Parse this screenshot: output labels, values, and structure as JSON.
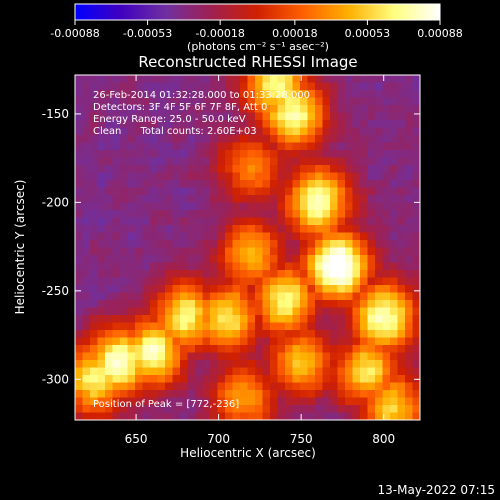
{
  "chart_data": {
    "type": "heatmap",
    "title": "Reconstructed RHESSI Image",
    "xlabel": "Heliocentric X (arcsec)",
    "ylabel": "Heliocentric Y (arcsec)",
    "xlim": [
      613,
      822
    ],
    "ylim": [
      -323,
      -128
    ],
    "x_ticks": [
      650,
      700,
      750,
      800
    ],
    "y_ticks": [
      -150,
      -200,
      -250,
      -300
    ],
    "colorbar": {
      "units": "(photons cm⁻² s⁻¹ asec⁻²)",
      "range": [
        -0.00088,
        0.00088
      ],
      "tick_values": [
        -0.00088,
        -0.00053,
        -0.00018,
        0.00018,
        0.00053,
        0.00088
      ],
      "tick_labels": [
        "-0.00088",
        "-0.00053",
        "-0.00018",
        "0.00018",
        "0.00053",
        "0.00088"
      ],
      "colors": [
        "#0000ff",
        "#4000c0",
        "#7030a0",
        "#a02050",
        "#d02000",
        "#ff6000",
        "#ffb000",
        "#ffff80",
        "#ffffff"
      ]
    },
    "annotations": [
      "26-Feb-2014 01:32:28.000 to 01:33:28.000",
      "Detectors: 3F 4F 5F 6F 7F 8F, Att 0",
      "Energy Range: 25.0 - 50.0 keV",
      "Clean      Total counts: 2.60E+03"
    ],
    "peak_label": "Position of Peak = [772,-236]",
    "peak": {
      "x": 772,
      "y": -236
    },
    "bright_ridges": [
      {
        "x": 772,
        "y": -236,
        "strength": 1.0
      },
      {
        "x": 760,
        "y": -200,
        "strength": 0.85
      },
      {
        "x": 745,
        "y": -150,
        "strength": 0.8
      },
      {
        "x": 735,
        "y": -135,
        "strength": 0.75
      },
      {
        "x": 800,
        "y": -265,
        "strength": 0.85
      },
      {
        "x": 790,
        "y": -295,
        "strength": 0.7
      },
      {
        "x": 805,
        "y": -315,
        "strength": 0.65
      },
      {
        "x": 740,
        "y": -255,
        "strength": 0.75
      },
      {
        "x": 705,
        "y": -265,
        "strength": 0.7
      },
      {
        "x": 680,
        "y": -265,
        "strength": 0.75
      },
      {
        "x": 660,
        "y": -285,
        "strength": 0.8
      },
      {
        "x": 640,
        "y": -290,
        "strength": 0.85
      },
      {
        "x": 625,
        "y": -300,
        "strength": 0.75
      },
      {
        "x": 720,
        "y": -230,
        "strength": 0.6
      },
      {
        "x": 720,
        "y": -180,
        "strength": 0.5
      },
      {
        "x": 715,
        "y": -310,
        "strength": 0.55
      },
      {
        "x": 750,
        "y": -290,
        "strength": 0.6
      }
    ]
  },
  "footer": {
    "timestamp": "13-May-2022 07:15"
  }
}
